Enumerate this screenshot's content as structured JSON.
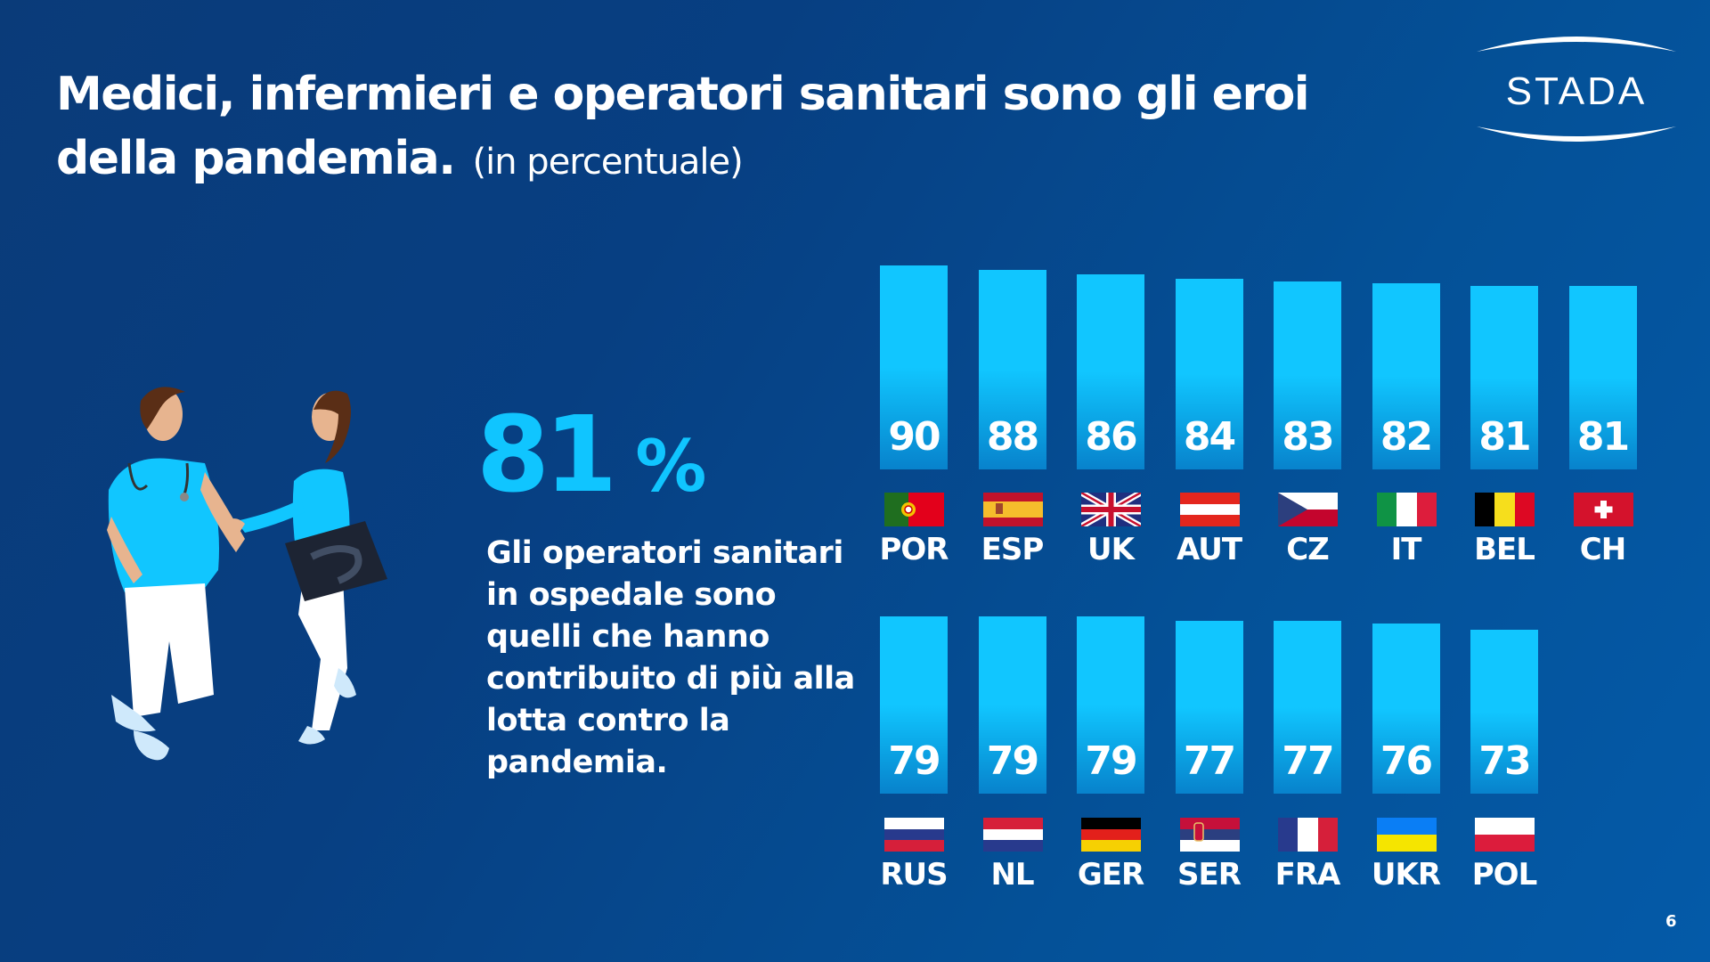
{
  "header": {
    "title": "Medici, infermieri e operatori sanitari sono gli eroi della pandemia.",
    "title_line1": "Medici, infermieri e operatori sanitari sono gli eroi",
    "title_line2": "della pandemia.",
    "subtitle": "(in percentuale)"
  },
  "logo": {
    "text": "STADA"
  },
  "highlight": {
    "value": "81",
    "unit": "%",
    "description": "Gli operatori sanitari in ospedale sono quelli che hanno contribuito di più alla lotta contro la pandemia."
  },
  "illustration": {
    "icon": "healthcare-workers-illustration"
  },
  "page_number": "6",
  "colors": {
    "background": "#073f82",
    "accent": "#11c6ff",
    "text": "#ffffff"
  },
  "chart_data": {
    "type": "bar",
    "title": "Medici, infermieri e operatori sanitari sono gli eroi della pandemia.",
    "subtitle": "(in percentuale)",
    "xlabel": "",
    "ylabel": "",
    "ylim": [
      0,
      100
    ],
    "grid": false,
    "legend": "none",
    "unit": "%",
    "rows": [
      {
        "categories": [
          "POR",
          "ESP",
          "UK",
          "AUT",
          "CZ",
          "IT",
          "BEL",
          "CH"
        ],
        "values": [
          90,
          88,
          86,
          84,
          83,
          82,
          81,
          81
        ],
        "flags": [
          "portugal",
          "spain",
          "uk",
          "austria",
          "czechia",
          "italy",
          "belgium",
          "switzerland"
        ]
      },
      {
        "categories": [
          "RUS",
          "NL",
          "GER",
          "SER",
          "FRA",
          "UKR",
          "POL"
        ],
        "values": [
          79,
          79,
          79,
          77,
          77,
          76,
          73
        ],
        "flags": [
          "russia",
          "netherlands",
          "germany",
          "serbia",
          "france",
          "ukraine",
          "poland"
        ]
      }
    ]
  }
}
